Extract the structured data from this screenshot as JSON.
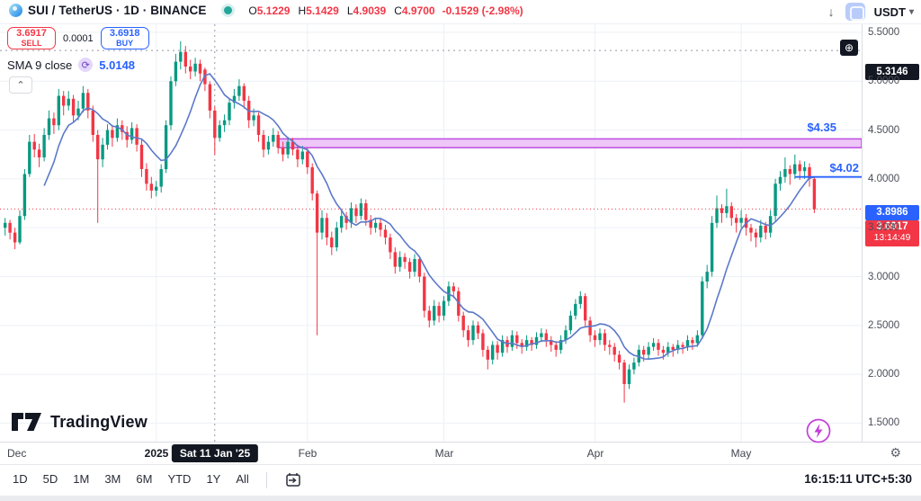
{
  "topbar": {
    "title": "SUI / TetherUS · 1D · BINANCE",
    "ohlc": [
      {
        "label": "O",
        "value": "5.1229"
      },
      {
        "label": "H",
        "value": "5.1429"
      },
      {
        "label": "L",
        "value": "4.9039"
      },
      {
        "label": "C",
        "value": "4.9700"
      }
    ],
    "change": "-0.1529 (-2.98%)",
    "currency": "USDT"
  },
  "trade_panel": {
    "sell_price": "3.6917",
    "sell_label": "SELL",
    "spread": "0.0001",
    "buy_price": "3.6918",
    "buy_label": "BUY"
  },
  "indicator": {
    "name": "SMA 9 close",
    "value": "5.0148"
  },
  "price_scale": {
    "ticks": [
      "5.5000",
      "5.0000",
      "4.5000",
      "4.0000",
      "3.5000",
      "3.0000",
      "2.5000",
      "2.0000",
      "1.5000"
    ],
    "crosshair_price": "5.3146",
    "sma_price": "3.8986",
    "last_price": "3.6917",
    "countdown": "13:14:49"
  },
  "time_scale": {
    "tooltip": "Sat 11 Jan '25"
  },
  "overlays": {
    "band_label": "$4.35",
    "line_label": "$4.02"
  },
  "footer": {
    "logo_text": "TradingView",
    "ranges": [
      "1D",
      "5D",
      "1M",
      "3M",
      "6M",
      "YTD",
      "1Y",
      "All"
    ],
    "clock": "16:15:11 UTC+5:30"
  },
  "chart_data": {
    "type": "candlestick",
    "title": "SUI / TetherUS 1D BINANCE",
    "ylabel": "Price (USDT)",
    "y_axis": {
      "min": 1.35,
      "max": 5.6,
      "ticks": [
        5.5,
        5.0,
        4.5,
        4.0,
        3.5,
        3.0,
        2.5,
        2.0,
        1.5
      ],
      "grid": true
    },
    "x_axis": {
      "labels": [
        {
          "text": "Dec",
          "index": 0,
          "bold": false
        },
        {
          "text": "2025",
          "index": 31,
          "bold": true
        },
        {
          "text": "Feb",
          "index": 62,
          "bold": false
        },
        {
          "text": "Mar",
          "index": 90,
          "bold": false
        },
        {
          "text": "Apr",
          "index": 121,
          "bold": false
        },
        {
          "text": "May",
          "index": 151,
          "bold": false
        }
      ]
    },
    "sma_period": 9,
    "levels": {
      "resistance_band": {
        "top": 4.41,
        "bottom": 4.32,
        "start_index": 56,
        "label": "$4.35",
        "fill": "#eec6f7",
        "stroke": "#c04fe0"
      },
      "blue_line": {
        "price": 4.02,
        "start_index": 162,
        "label": "$4.02",
        "color": "#2962ff"
      },
      "last_price_line": {
        "price": 3.6917,
        "color": "#f23645"
      },
      "crosshair": {
        "price": 5.3146,
        "index": 43
      }
    },
    "colors": {
      "up": "#089981",
      "down": "#f23645",
      "sma": "#5b79c9",
      "grid": "#edf0f6",
      "crosshair": "#9598a1"
    },
    "candles": [
      [
        3.5,
        3.6,
        3.42,
        3.55
      ],
      [
        3.55,
        3.58,
        3.38,
        3.45
      ],
      [
        3.45,
        3.5,
        3.28,
        3.35
      ],
      [
        3.35,
        3.68,
        3.33,
        3.62
      ],
      [
        3.62,
        4.1,
        3.58,
        4.05
      ],
      [
        4.05,
        4.45,
        4.02,
        4.38
      ],
      [
        4.38,
        4.46,
        4.22,
        4.3
      ],
      [
        4.3,
        4.36,
        4.12,
        4.22
      ],
      [
        4.22,
        4.52,
        4.18,
        4.45
      ],
      [
        4.45,
        4.7,
        4.4,
        4.62
      ],
      [
        4.62,
        4.68,
        4.46,
        4.55
      ],
      [
        4.55,
        4.92,
        4.5,
        4.85
      ],
      [
        4.85,
        4.9,
        4.65,
        4.75
      ],
      [
        4.75,
        4.9,
        4.7,
        4.82
      ],
      [
        4.82,
        4.86,
        4.58,
        4.65
      ],
      [
        4.65,
        4.8,
        4.6,
        4.72
      ],
      [
        4.72,
        4.95,
        4.68,
        4.88
      ],
      [
        4.88,
        4.92,
        4.62,
        4.7
      ],
      [
        4.7,
        4.75,
        4.38,
        4.45
      ],
      [
        4.45,
        4.5,
        3.55,
        4.2
      ],
      [
        4.2,
        4.42,
        4.12,
        4.35
      ],
      [
        4.35,
        4.56,
        4.3,
        4.5
      ],
      [
        4.5,
        4.55,
        4.33,
        4.42
      ],
      [
        4.42,
        4.62,
        4.38,
        4.55
      ],
      [
        4.55,
        4.6,
        4.4,
        4.48
      ],
      [
        4.48,
        4.54,
        4.32,
        4.4
      ],
      [
        4.4,
        4.58,
        4.36,
        4.52
      ],
      [
        4.52,
        4.56,
        4.28,
        4.35
      ],
      [
        4.35,
        4.4,
        4.02,
        4.1
      ],
      [
        4.1,
        4.16,
        3.88,
        3.95
      ],
      [
        3.95,
        4.02,
        3.8,
        3.88
      ],
      [
        3.88,
        3.98,
        3.82,
        3.92
      ],
      [
        3.92,
        4.15,
        3.86,
        4.1
      ],
      [
        4.1,
        4.6,
        4.06,
        4.55
      ],
      [
        4.55,
        5.05,
        4.5,
        5.0
      ],
      [
        5.0,
        5.28,
        4.95,
        5.2
      ],
      [
        5.2,
        5.41,
        5.12,
        5.3
      ],
      [
        5.3,
        5.36,
        5.08,
        5.15
      ],
      [
        5.15,
        5.22,
        5.02,
        5.1
      ],
      [
        5.1,
        5.24,
        5.05,
        5.18
      ],
      [
        5.18,
        5.22,
        5.0,
        5.08
      ],
      [
        5.12,
        5.14,
        4.9,
        4.97
      ],
      [
        4.97,
        5.0,
        4.62,
        4.7
      ],
      [
        4.7,
        4.74,
        4.25,
        4.42
      ],
      [
        4.42,
        4.6,
        4.38,
        4.55
      ],
      [
        4.55,
        4.66,
        4.48,
        4.6
      ],
      [
        4.6,
        4.82,
        4.55,
        4.78
      ],
      [
        4.78,
        4.92,
        4.72,
        4.85
      ],
      [
        4.85,
        5.02,
        4.8,
        4.95
      ],
      [
        4.95,
        4.98,
        4.72,
        4.8
      ],
      [
        4.8,
        4.85,
        4.52,
        4.6
      ],
      [
        4.6,
        4.72,
        4.54,
        4.65
      ],
      [
        4.65,
        4.68,
        4.38,
        4.45
      ],
      [
        4.45,
        4.5,
        4.22,
        4.3
      ],
      [
        4.3,
        4.44,
        4.25,
        4.38
      ],
      [
        4.38,
        4.52,
        4.33,
        4.45
      ],
      [
        4.45,
        4.49,
        4.26,
        4.32
      ],
      [
        4.32,
        4.38,
        4.18,
        4.25
      ],
      [
        4.25,
        4.43,
        4.21,
        4.38
      ],
      [
        4.38,
        4.42,
        4.24,
        4.3
      ],
      [
        4.3,
        4.35,
        4.12,
        4.2
      ],
      [
        4.2,
        4.34,
        4.15,
        4.28
      ],
      [
        4.28,
        4.32,
        4.05,
        4.12
      ],
      [
        4.12,
        4.16,
        3.78,
        3.85
      ],
      [
        3.85,
        3.88,
        2.4,
        3.45
      ],
      [
        3.45,
        3.68,
        3.38,
        3.6
      ],
      [
        3.6,
        3.65,
        3.32,
        3.4
      ],
      [
        3.4,
        3.46,
        3.22,
        3.3
      ],
      [
        3.3,
        3.56,
        3.26,
        3.5
      ],
      [
        3.5,
        3.68,
        3.45,
        3.62
      ],
      [
        3.62,
        3.66,
        3.48,
        3.55
      ],
      [
        3.55,
        3.76,
        3.5,
        3.7
      ],
      [
        3.7,
        3.74,
        3.55,
        3.62
      ],
      [
        3.62,
        3.8,
        3.58,
        3.75
      ],
      [
        3.75,
        3.79,
        3.52,
        3.58
      ],
      [
        3.58,
        3.63,
        3.43,
        3.5
      ],
      [
        3.5,
        3.6,
        3.45,
        3.55
      ],
      [
        3.55,
        3.59,
        3.41,
        3.48
      ],
      [
        3.48,
        3.53,
        3.33,
        3.4
      ],
      [
        3.4,
        3.44,
        3.18,
        3.25
      ],
      [
        3.25,
        3.3,
        3.03,
        3.1
      ],
      [
        3.1,
        3.26,
        3.05,
        3.2
      ],
      [
        3.2,
        3.24,
        3.08,
        3.15
      ],
      [
        3.15,
        3.19,
        2.98,
        3.05
      ],
      [
        3.05,
        3.23,
        3.0,
        3.18
      ],
      [
        3.18,
        3.21,
        2.94,
        3.0
      ],
      [
        3.0,
        3.04,
        2.58,
        2.65
      ],
      [
        2.65,
        2.7,
        2.48,
        2.55
      ],
      [
        2.55,
        2.76,
        2.5,
        2.7
      ],
      [
        2.7,
        2.74,
        2.53,
        2.6
      ],
      [
        2.6,
        2.8,
        2.55,
        2.75
      ],
      [
        2.75,
        2.95,
        2.7,
        2.9
      ],
      [
        2.9,
        2.94,
        2.78,
        2.85
      ],
      [
        2.85,
        2.89,
        2.54,
        2.6
      ],
      [
        2.6,
        2.64,
        2.38,
        2.45
      ],
      [
        2.45,
        2.5,
        2.28,
        2.35
      ],
      [
        2.35,
        2.55,
        2.3,
        2.5
      ],
      [
        2.5,
        2.54,
        2.36,
        2.42
      ],
      [
        2.42,
        2.46,
        2.18,
        2.25
      ],
      [
        2.25,
        2.29,
        2.05,
        2.15
      ],
      [
        2.15,
        2.34,
        2.1,
        2.3
      ],
      [
        2.3,
        2.34,
        2.15,
        2.22
      ],
      [
        2.22,
        2.4,
        2.18,
        2.35
      ],
      [
        2.35,
        2.39,
        2.22,
        2.28
      ],
      [
        2.28,
        2.45,
        2.24,
        2.4
      ],
      [
        2.4,
        2.44,
        2.26,
        2.32
      ],
      [
        2.32,
        2.36,
        2.21,
        2.28
      ],
      [
        2.28,
        2.4,
        2.24,
        2.35
      ],
      [
        2.35,
        2.38,
        2.24,
        2.3
      ],
      [
        2.3,
        2.43,
        2.26,
        2.38
      ],
      [
        2.38,
        2.47,
        2.33,
        2.42
      ],
      [
        2.42,
        2.46,
        2.28,
        2.35
      ],
      [
        2.35,
        2.39,
        2.23,
        2.3
      ],
      [
        2.3,
        2.34,
        2.18,
        2.25
      ],
      [
        2.25,
        2.4,
        2.21,
        2.35
      ],
      [
        2.35,
        2.5,
        2.31,
        2.45
      ],
      [
        2.45,
        2.65,
        2.41,
        2.6
      ],
      [
        2.6,
        2.77,
        2.56,
        2.72
      ],
      [
        2.72,
        2.85,
        2.67,
        2.8
      ],
      [
        2.8,
        2.83,
        2.48,
        2.55
      ],
      [
        2.55,
        2.59,
        2.33,
        2.4
      ],
      [
        2.4,
        2.45,
        2.28,
        2.35
      ],
      [
        2.35,
        2.47,
        2.3,
        2.42
      ],
      [
        2.42,
        2.46,
        2.24,
        2.3
      ],
      [
        2.3,
        2.35,
        2.2,
        2.28
      ],
      [
        2.28,
        2.32,
        2.13,
        2.2
      ],
      [
        2.2,
        2.24,
        2.05,
        2.12
      ],
      [
        2.12,
        2.15,
        1.71,
        1.9
      ],
      [
        1.9,
        2.1,
        1.85,
        2.05
      ],
      [
        2.05,
        2.17,
        2.0,
        2.12
      ],
      [
        2.12,
        2.3,
        2.08,
        2.25
      ],
      [
        2.25,
        2.29,
        2.13,
        2.2
      ],
      [
        2.2,
        2.33,
        2.16,
        2.28
      ],
      [
        2.28,
        2.37,
        2.24,
        2.32
      ],
      [
        2.32,
        2.36,
        2.19,
        2.25
      ],
      [
        2.25,
        2.29,
        2.15,
        2.22
      ],
      [
        2.22,
        2.33,
        2.18,
        2.28
      ],
      [
        2.28,
        2.31,
        2.18,
        2.25
      ],
      [
        2.25,
        2.35,
        2.21,
        2.3
      ],
      [
        2.3,
        2.33,
        2.21,
        2.28
      ],
      [
        2.28,
        2.4,
        2.24,
        2.35
      ],
      [
        2.35,
        2.38,
        2.25,
        2.32
      ],
      [
        2.32,
        2.45,
        2.28,
        2.4
      ],
      [
        2.4,
        3.0,
        2.36,
        2.95
      ],
      [
        2.95,
        3.12,
        2.88,
        3.05
      ],
      [
        3.05,
        3.62,
        3.0,
        3.55
      ],
      [
        3.55,
        3.83,
        3.5,
        3.7
      ],
      [
        3.7,
        3.74,
        3.55,
        3.65
      ],
      [
        3.65,
        3.9,
        3.6,
        3.72
      ],
      [
        3.72,
        3.76,
        3.52,
        3.6
      ],
      [
        3.6,
        3.64,
        3.45,
        3.55
      ],
      [
        3.55,
        3.68,
        3.5,
        3.6
      ],
      [
        3.6,
        3.64,
        3.42,
        3.5
      ],
      [
        3.5,
        3.54,
        3.36,
        3.45
      ],
      [
        3.45,
        3.49,
        3.3,
        3.4
      ],
      [
        3.4,
        3.58,
        3.35,
        3.52
      ],
      [
        3.52,
        3.56,
        3.38,
        3.45
      ],
      [
        3.45,
        3.68,
        3.4,
        3.62
      ],
      [
        3.62,
        4.0,
        3.56,
        3.95
      ],
      [
        3.95,
        4.08,
        3.88,
        4.02
      ],
      [
        4.02,
        4.22,
        3.96,
        4.1
      ],
      [
        4.1,
        4.14,
        3.94,
        4.05
      ],
      [
        4.05,
        4.25,
        4.0,
        4.15
      ],
      [
        4.15,
        4.19,
        3.99,
        4.08
      ],
      [
        4.08,
        4.18,
        4.0,
        4.12
      ],
      [
        4.12,
        4.16,
        3.92,
        4.0
      ],
      [
        4.0,
        4.02,
        3.65,
        3.69
      ]
    ]
  }
}
